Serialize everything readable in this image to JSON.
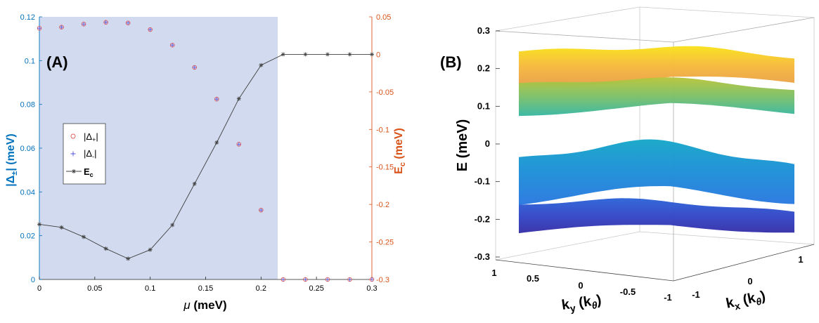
{
  "chart_data": [
    {
      "type": "scatter",
      "panel_label": "(A)",
      "xlabel_symbol": "μ",
      "xlabel_unit": " (meV)",
      "xlim": [
        0,
        0.3
      ],
      "x_ticks": [
        "0",
        "0.05",
        "0.1",
        "0.15",
        "0.2",
        "0.25",
        "0.3"
      ],
      "x_tick_values": [
        0,
        0.05,
        0.1,
        0.15,
        0.2,
        0.25,
        0.3
      ],
      "ylabel_left": "|Δ±| (meV)",
      "ylabel_left_parts": {
        "bar1": "|",
        "delta": "Δ",
        "sub": "±",
        "bar2": "|",
        "unit": " (meV)"
      },
      "ylim_left": [
        0,
        0.12
      ],
      "y_ticks_left": [
        "0",
        "0.02",
        "0.04",
        "0.06",
        "0.08",
        "0.1",
        "0.12"
      ],
      "y_tick_values_left": [
        0,
        0.02,
        0.04,
        0.06,
        0.08,
        0.1,
        0.12
      ],
      "ylabel_right": "Ec (meV)",
      "ylabel_right_parts": {
        "main": "E",
        "sub": "c",
        "unit": " (meV)"
      },
      "ylim_right": [
        -0.3,
        0.05
      ],
      "y_ticks_right": [
        "0.05",
        "0",
        "-0.05",
        "-0.1",
        "-0.15",
        "-0.2",
        "-0.25",
        "-0.3"
      ],
      "y_tick_values_right": [
        0.05,
        0,
        -0.05,
        -0.1,
        -0.15,
        -0.2,
        -0.25,
        -0.3
      ],
      "shaded_region": {
        "x_from": 0,
        "x_to": 0.215,
        "color": "#d1daef"
      },
      "colors": {
        "left_axis": "#0072BD",
        "right_axis": "#D95319",
        "delta_plus": "#e05a5a",
        "delta_minus": "#5050e0",
        "ec": "#404040"
      },
      "legend": {
        "position": "middle-left",
        "entries": [
          {
            "label_main": "|Δ",
            "label_sub": "+",
            "label_end": "|",
            "marker": "circle"
          },
          {
            "label_main": "|Δ",
            "label_sub": "-",
            "label_end": "|",
            "marker": "plus"
          },
          {
            "label_main": "E",
            "label_sub": "c",
            "label_end": "",
            "marker": "line-star"
          }
        ]
      },
      "series": [
        {
          "name": "|Δ+|",
          "axis": "left",
          "marker": "circle",
          "x": [
            0,
            0.02,
            0.04,
            0.06,
            0.08,
            0.1,
            0.12,
            0.14,
            0.16,
            0.18,
            0.2,
            0.22,
            0.24,
            0.26,
            0.28,
            0.3
          ],
          "y": [
            0.1148,
            0.1153,
            0.1167,
            0.1175,
            0.1172,
            0.1142,
            0.1071,
            0.0969,
            0.0824,
            0.0618,
            0.0317,
            0,
            0,
            0,
            0,
            0
          ]
        },
        {
          "name": "|Δ-|",
          "axis": "left",
          "marker": "plus",
          "x": [
            0,
            0.02,
            0.04,
            0.06,
            0.08,
            0.1,
            0.12,
            0.14,
            0.16,
            0.18,
            0.2,
            0.22,
            0.24,
            0.26,
            0.28,
            0.3
          ],
          "y": [
            0.1148,
            0.1153,
            0.1167,
            0.1175,
            0.1172,
            0.1142,
            0.1071,
            0.0969,
            0.0824,
            0.0618,
            0.0317,
            0,
            0,
            0,
            0,
            0
          ]
        },
        {
          "name": "Ec",
          "axis": "right",
          "marker": "line-star",
          "x": [
            0,
            0.02,
            0.04,
            0.06,
            0.08,
            0.1,
            0.12,
            0.14,
            0.16,
            0.18,
            0.2,
            0.22,
            0.24,
            0.26,
            0.28,
            0.3
          ],
          "y": [
            -0.2265,
            -0.2306,
            -0.2433,
            -0.2589,
            -0.2723,
            -0.2604,
            -0.2275,
            -0.1725,
            -0.1175,
            -0.0591,
            -0.0144,
            0,
            0,
            0,
            0,
            0
          ]
        }
      ]
    },
    {
      "type": "surface3d",
      "panel_label": "(B)",
      "zlabel": "E (meV)",
      "zlim": [
        -0.3,
        0.3
      ],
      "z_ticks": [
        "0.3",
        "0.2",
        "0.1",
        "0",
        "-0.1",
        "-0.2",
        "-0.3"
      ],
      "z_tick_values": [
        0.3,
        0.2,
        0.1,
        0,
        -0.1,
        -0.2,
        -0.3
      ],
      "xlabel_parts": {
        "main": "k",
        "sub": "x",
        "mid": " (k",
        "sub2": "θ",
        "end": ")"
      },
      "ylabel_parts": {
        "main": "k",
        "sub": "y",
        "mid": " (k",
        "sub2": "θ",
        "end": ")"
      },
      "x_ticks": [
        "1",
        "0",
        "-1"
      ],
      "x_tick_values": [
        1,
        0,
        -1
      ],
      "y_ticks": [
        "1",
        "0.5",
        "0",
        "-0.5",
        "-1"
      ],
      "y_tick_values": [
        1,
        0.5,
        0,
        -0.5,
        -1
      ],
      "colormap": "parula",
      "bands_mean_energy": [
        0.21,
        0.13,
        -0.08,
        -0.19
      ]
    }
  ]
}
